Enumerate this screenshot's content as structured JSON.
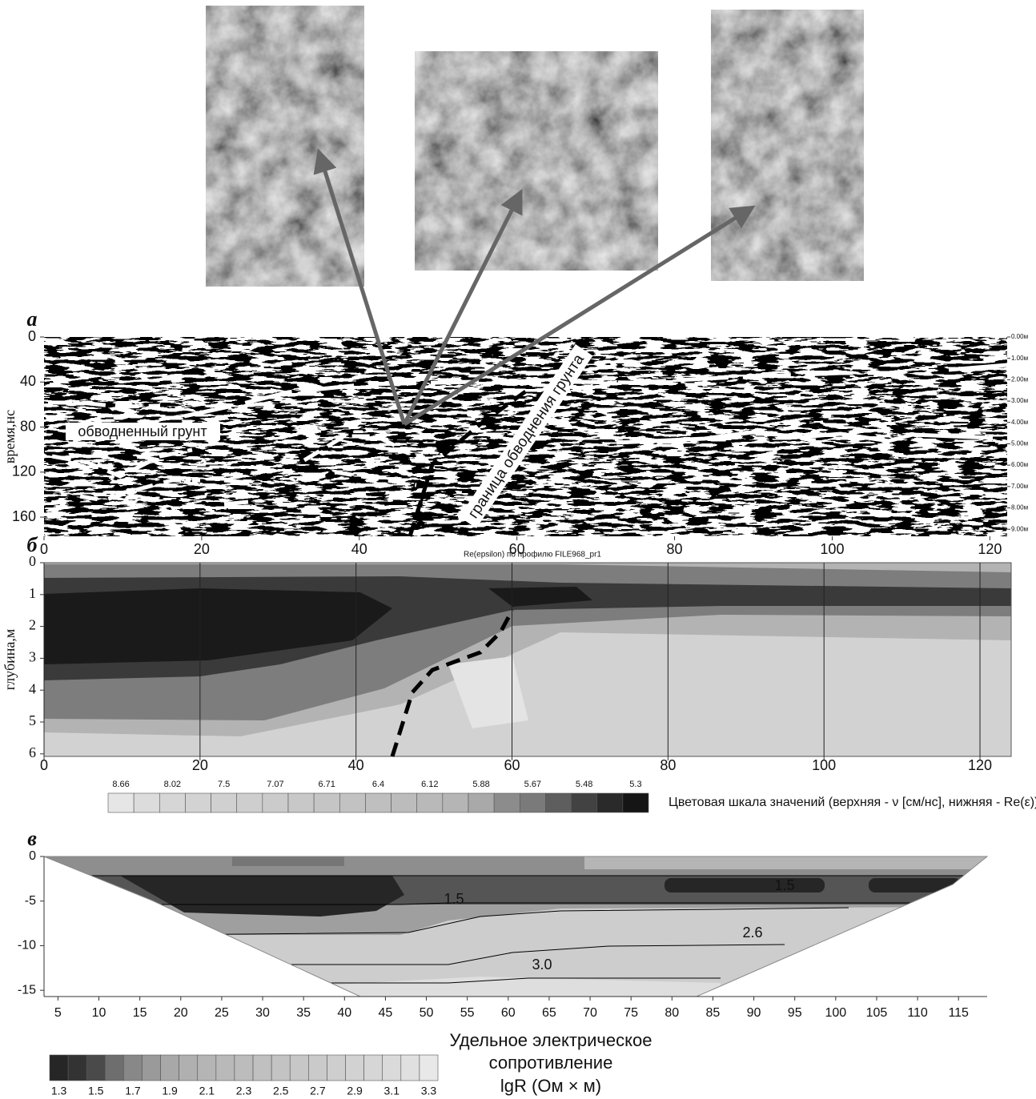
{
  "chart_data": [
    {
      "type": "radargram",
      "panel_label": "а",
      "ylabel": "время,нс",
      "annotations": [
        "обводненный грунт",
        "граница обводнения грунта"
      ],
      "caption": "Re(epsilon) по профилю FILE968_pr1",
      "xlim": [
        0,
        122.2
      ],
      "xticks": [
        0,
        20,
        40,
        60,
        80,
        100,
        120
      ],
      "ylim": [
        177,
        0
      ],
      "yticks": [
        0,
        40,
        80,
        120,
        160
      ],
      "y2lim": [
        9.33,
        0
      ],
      "y2ticks": [
        {
          "value": 0,
          "label": "0.00м"
        },
        {
          "value": 1,
          "label": "1.00м"
        },
        {
          "value": 2,
          "label": "2.00м"
        },
        {
          "value": 3,
          "label": "3.00м"
        },
        {
          "value": 4,
          "label": "4.00м"
        },
        {
          "value": 5,
          "label": "5.00м"
        },
        {
          "value": 6,
          "label": "6.00м"
        },
        {
          "value": 7,
          "label": "7.00м"
        },
        {
          "value": 8,
          "label": "8.00м"
        },
        {
          "value": 9,
          "label": "9.00м"
        }
      ]
    },
    {
      "type": "contour",
      "panel_label": "б",
      "ylabel": "глубина,м",
      "grid": true,
      "xlim": [
        0,
        124
      ],
      "xticks": [
        0,
        20,
        40,
        60,
        80,
        100,
        120
      ],
      "ylim": [
        6.08,
        0
      ],
      "yticks": [
        0,
        1,
        2,
        3,
        4,
        5,
        6
      ]
    },
    {
      "type": "colorbar",
      "title": "Цветовая шкала значений (верхняя - ν [см/нс], нижняя - Re(ε)):",
      "labels": [
        8.66,
        8.02,
        7.5,
        7.07,
        6.71,
        6.4,
        6.12,
        5.88,
        5.67,
        5.48,
        5.3
      ],
      "colors": [
        "#e6e6e6",
        "#dcdcdc",
        "#d6d6d6",
        "#d3d3d3",
        "#d0d0d0",
        "#cecece",
        "#cbcbcb",
        "#c8c8c8",
        "#c5c5c5",
        "#c2c2c2",
        "#bfbfbf",
        "#bcbcbc",
        "#b9b9b9",
        "#b5b5b5",
        "#a9a9a9",
        "#8c8c8c",
        "#7a7a7a",
        "#5e5e5e",
        "#424242",
        "#2a2a2a",
        "#151515"
      ]
    },
    {
      "type": "section",
      "panel_label": "в",
      "contour_levels": [
        1.5,
        1.5,
        2.6,
        {
          "value": 3,
          "label": "3.0"
        }
      ],
      "xlim": [
        3.3,
        118.5
      ],
      "xticks": [
        5,
        10,
        15,
        20,
        25,
        30,
        35,
        40,
        45,
        50,
        55,
        60,
        65,
        70,
        75,
        80,
        85,
        90,
        95,
        100,
        105,
        110,
        115
      ],
      "ylim": [
        -15.7,
        0
      ],
      "yticks": [
        0,
        -5,
        -10,
        -15
      ]
    },
    {
      "type": "colorbar",
      "title": [
        "Удельное электрическое",
        "сопротивление",
        "lgR (Ом × м)"
      ],
      "labels": [
        1.3,
        1.5,
        1.7,
        1.9,
        2.1,
        2.3,
        2.5,
        2.7,
        2.9,
        3.1,
        3.3
      ],
      "colors": [
        "#262626",
        "#333333",
        "#4a4a4a",
        "#6e6e6e",
        "#888888",
        "#9a9a9a",
        "#a8a8a8",
        "#b0b0b0",
        "#b5b5b5",
        "#b9b9b9",
        "#bcbcbc",
        "#c0c0c0",
        "#c3c3c3",
        "#c7c7c7",
        "#cacaca",
        "#cecece",
        "#d2d2d2",
        "#d6d6d6",
        "#dadada",
        "#e0e0e0",
        "#e8e8e8"
      ]
    }
  ]
}
